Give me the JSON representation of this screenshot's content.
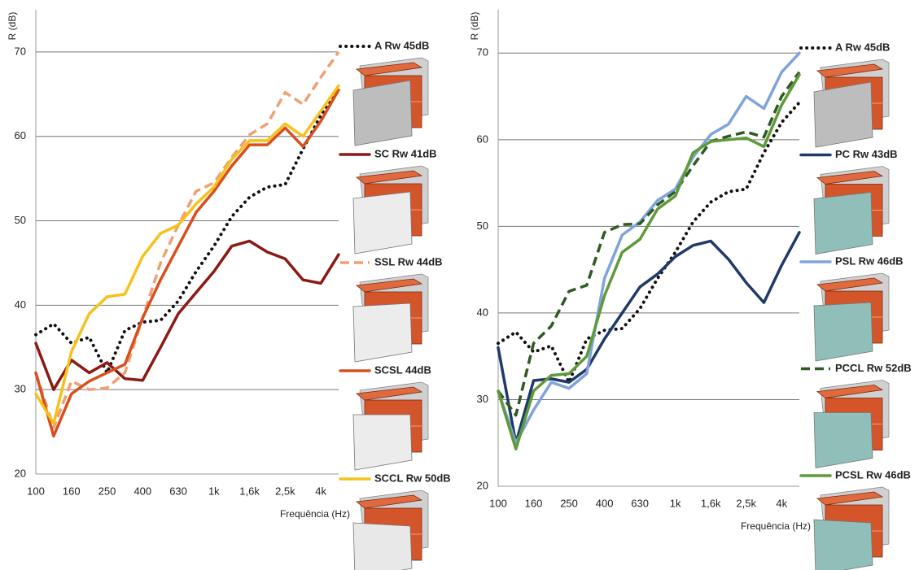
{
  "chart_data": [
    {
      "type": "line",
      "y_label": "R (dB)",
      "x_label": "Frequência (Hz)",
      "categories": [
        "100",
        null,
        "160",
        null,
        "250",
        null,
        "400",
        null,
        "630",
        null,
        "1k",
        null,
        "1,6k",
        null,
        "2,5k",
        null,
        "4k",
        null
      ],
      "ylim": [
        20,
        75
      ],
      "yticks": [
        20,
        30,
        40,
        50,
        60,
        70
      ],
      "grid": true,
      "series": [
        {
          "name": "A Rw 45dB",
          "color": "#111111",
          "style": "dotted",
          "values": [
            36.5,
            37.8,
            35.5,
            36.2,
            32,
            37,
            38,
            38.2,
            40.5,
            44,
            47,
            50.5,
            52.8,
            54,
            54.3,
            58.5,
            62.5,
            65.5
          ]
        },
        {
          "name": "SC Rw 41dB",
          "color": "#8b1a14",
          "style": "solid",
          "values": [
            35.5,
            30,
            33.5,
            32,
            33.2,
            31.3,
            31.1,
            35,
            39,
            41.5,
            44,
            47,
            47.6,
            46.3,
            45.5,
            43,
            42.6,
            46
          ]
        },
        {
          "name": "SSL Rw 44dB",
          "color": "#f0a070",
          "style": "dashed",
          "values": [
            32,
            25.5,
            31,
            30,
            30.2,
            32,
            38.5,
            45,
            49.5,
            53.5,
            54.5,
            57.5,
            60.2,
            61.5,
            65.2,
            63.8,
            67,
            70
          ]
        },
        {
          "name": "SCSL 44dB",
          "color": "#d94e1f",
          "style": "solid",
          "values": [
            32,
            24.5,
            29.5,
            31,
            32,
            33,
            38.5,
            43,
            47,
            51,
            53.5,
            56.5,
            59,
            59,
            61,
            58.8,
            61.8,
            65.5
          ]
        },
        {
          "name": "SCCL Rw 50dB",
          "color": "#f5c21b",
          "style": "solid",
          "values": [
            29.5,
            26,
            34.5,
            39,
            41,
            41.3,
            45.8,
            48.5,
            49.5,
            52,
            54,
            57.3,
            59.5,
            59.5,
            61.5,
            60,
            63,
            66
          ]
        }
      ]
    },
    {
      "type": "line",
      "y_label": "R (dB)",
      "x_label": "Frequência (Hz)",
      "categories": [
        "100",
        null,
        "160",
        null,
        "250",
        null,
        "400",
        null,
        "630",
        null,
        "1k",
        null,
        "1,6k",
        null,
        "2,5k",
        null,
        "4k",
        null
      ],
      "ylim": [
        20,
        75
      ],
      "yticks": [
        20,
        30,
        40,
        50,
        60,
        70
      ],
      "grid": true,
      "series": [
        {
          "name": "A Rw 45dB",
          "color": "#111111",
          "style": "dotted",
          "values": [
            36.5,
            37.8,
            35.5,
            36.2,
            32,
            37,
            38,
            38.2,
            40.5,
            44,
            47,
            50.5,
            52.8,
            54,
            54.3,
            58.5,
            62,
            64.3
          ]
        },
        {
          "name": "PC Rw 43dB",
          "color": "#1f3a68",
          "style": "solid",
          "values": [
            36,
            25,
            32.2,
            32.4,
            32,
            33.5,
            37,
            40,
            43,
            44.5,
            46.5,
            47.8,
            48.3,
            46.2,
            43.5,
            41.2,
            45.5,
            49.3
          ]
        },
        {
          "name": "PSL Rw 46dB",
          "color": "#7fa3da",
          "style": "solid",
          "values": [
            31,
            25,
            28.8,
            32,
            31.3,
            33,
            44,
            49,
            50.5,
            53,
            54.3,
            58,
            60.6,
            61.8,
            65,
            63.6,
            67.8,
            70
          ]
        },
        {
          "name": "PCCL Rw 52dB",
          "color": "#2f5a22",
          "style": "dashed",
          "values": [
            31,
            28.2,
            36.5,
            38.5,
            42.5,
            43.2,
            49.3,
            50.2,
            50.3,
            52.5,
            54,
            57,
            59.8,
            60.4,
            60.9,
            60.3,
            65,
            67.8
          ]
        },
        {
          "name": "PCSL Rw 46dB",
          "color": "#5e9a3a",
          "style": "solid",
          "values": [
            31,
            24.3,
            31,
            32.8,
            33,
            35,
            42,
            47,
            48.5,
            52,
            53.5,
            58.5,
            59.8,
            60,
            60.2,
            59.2,
            64,
            67.5
          ]
        }
      ]
    }
  ]
}
